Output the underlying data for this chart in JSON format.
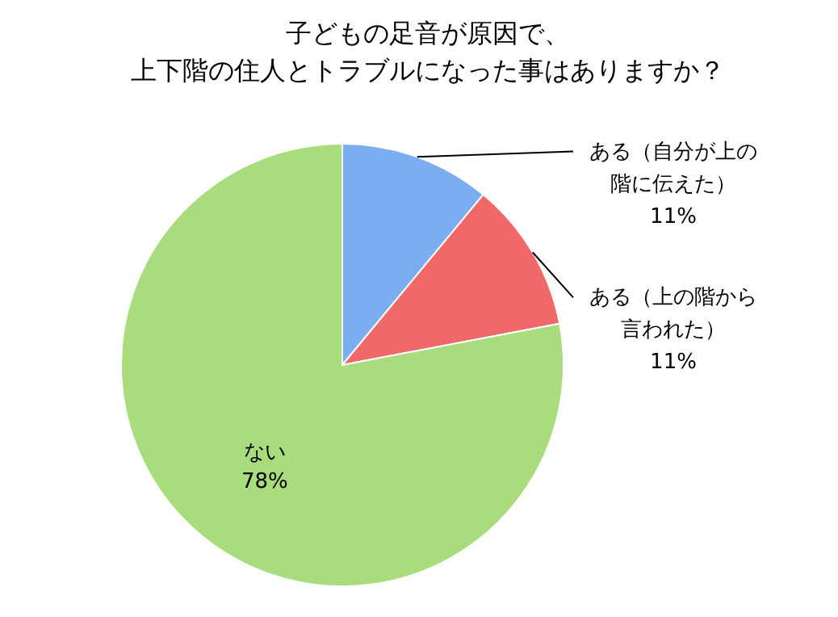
{
  "chart_data": {
    "type": "pie",
    "title": "子どもの足音が原因で、上下階の住人とトラブルになった事はありますか？",
    "categories": [
      "ある（自分が上の階に伝えた）",
      "ある（上の階から言われた）",
      "ない"
    ],
    "values": [
      11,
      11,
      78
    ],
    "colors": [
      "#7aaef0",
      "#f06868",
      "#a8dc7c"
    ],
    "value_labels": [
      "11%",
      "11%",
      "78%"
    ]
  }
}
